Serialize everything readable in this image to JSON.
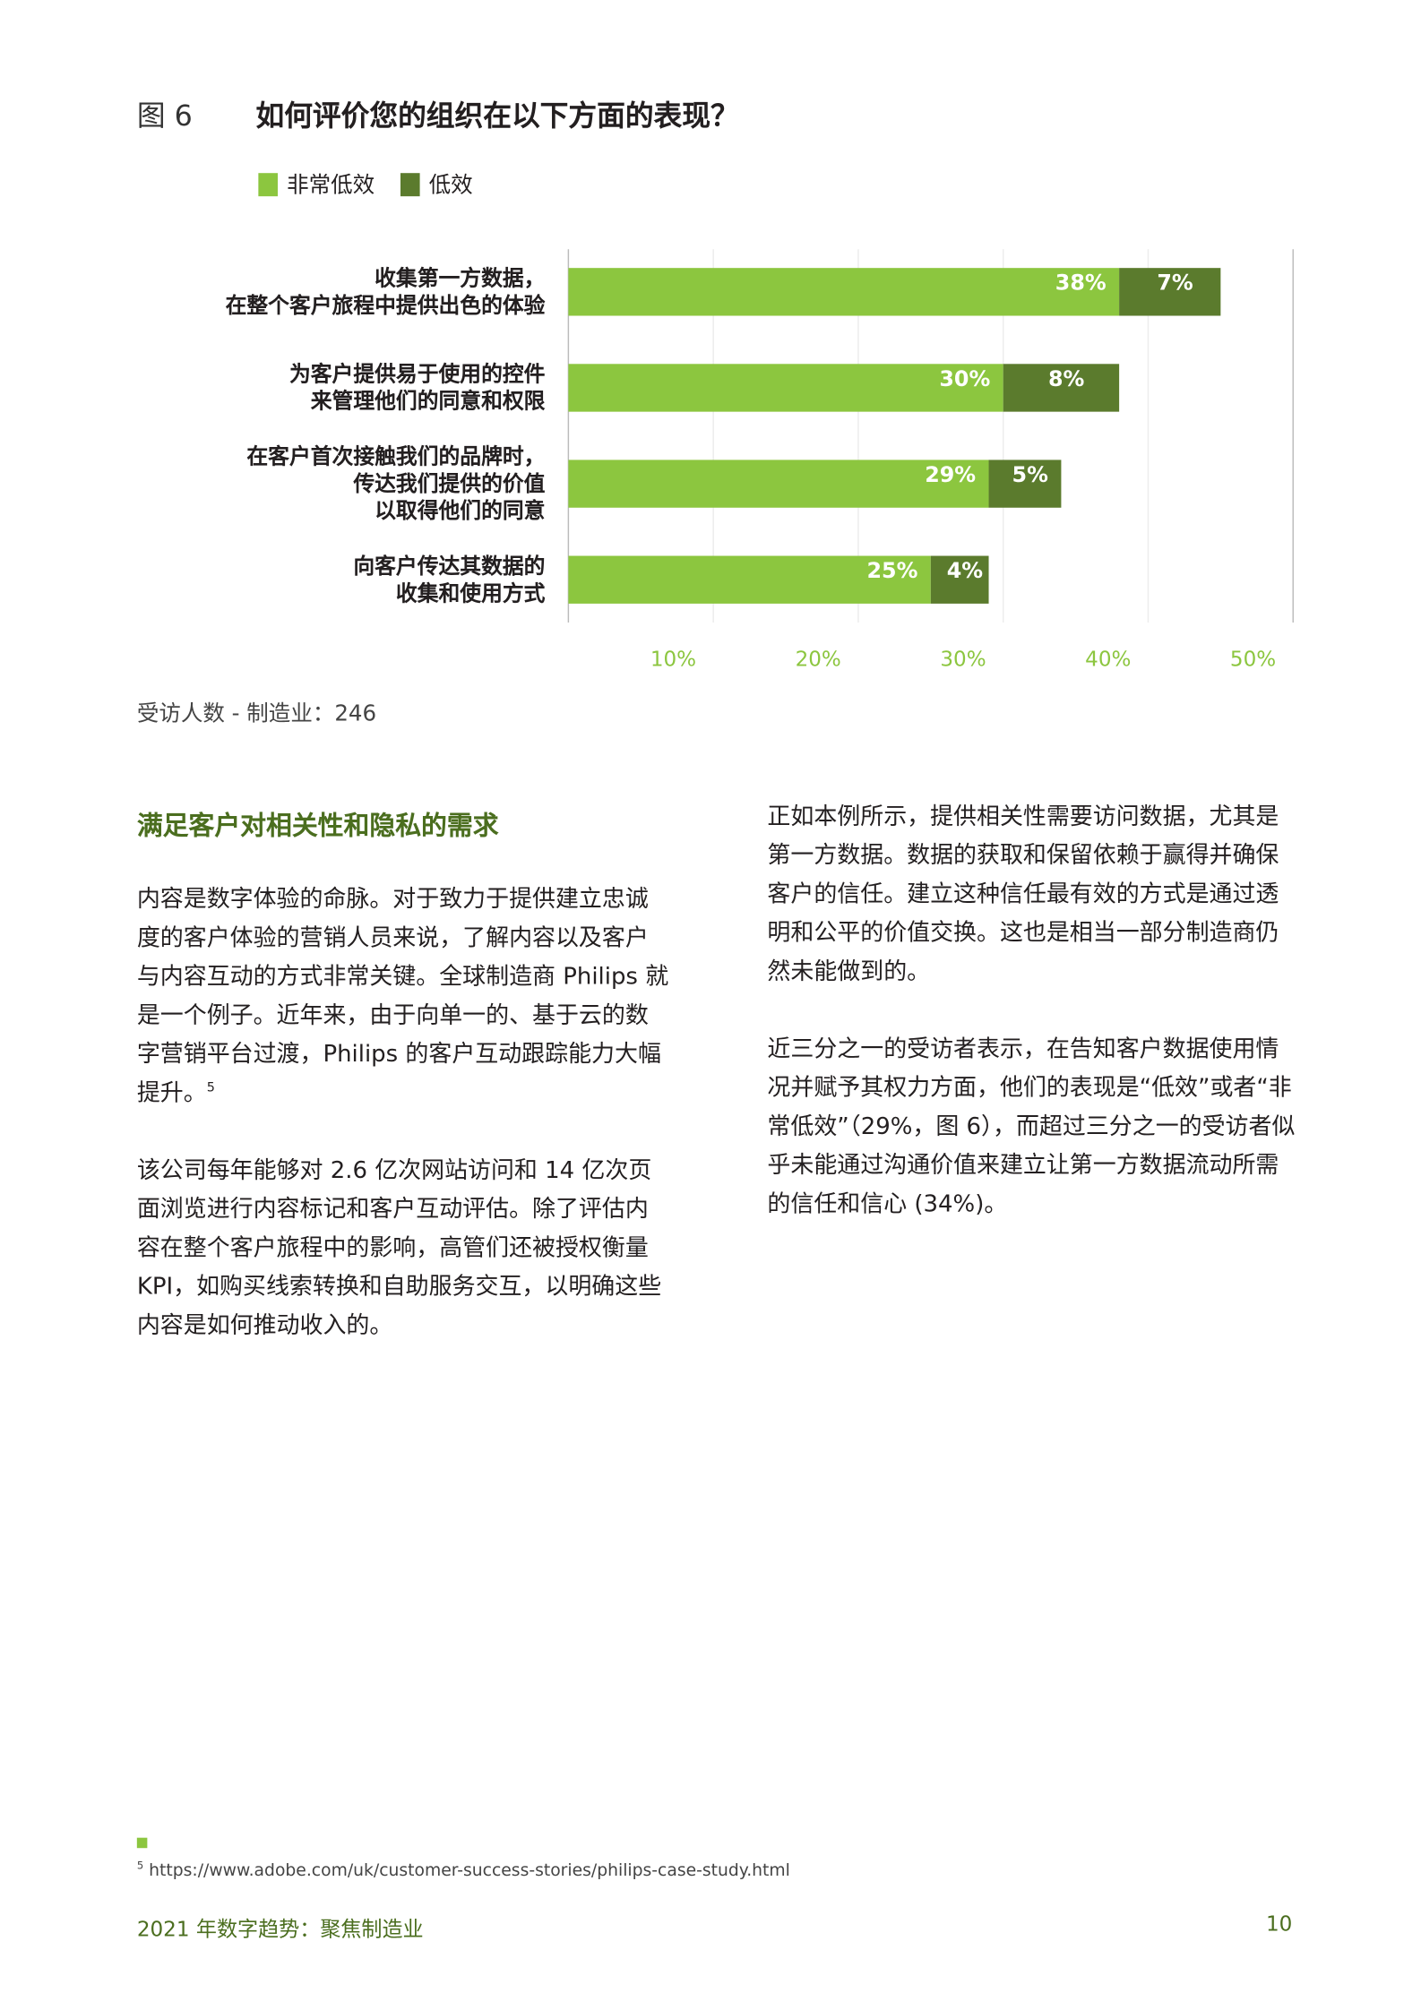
{
  "figure": {
    "label": "图 6",
    "title": "如何评价您的组织在以下方面的表现？"
  },
  "chart_data": {
    "type": "bar",
    "orientation": "horizontal",
    "stacked": true,
    "categories": [
      "收集第一方数据，\n在整个客户旅程中提供出色的体验",
      "为客户提供易于使用的控件\n来管理他们的同意和权限",
      "在客户首次接触我们的品牌时，\n传达我们提供的价值\n以取得他们的同意",
      "向客户传达其数据的\n收集和使用方式"
    ],
    "series": [
      {
        "name": "非常低效",
        "color": "#8cc63f",
        "values": [
          38,
          30,
          29,
          25
        ],
        "value_labels": [
          "38%",
          "30%",
          "29%",
          "25%"
        ]
      },
      {
        "name": "低效",
        "color": "#5b7b2d",
        "values": [
          7,
          8,
          5,
          4
        ],
        "value_labels": [
          "7%",
          "8%",
          "5%",
          "4%"
        ]
      }
    ],
    "xlim": [
      0,
      50
    ],
    "xticks": [
      {
        "value": 10,
        "label": "10%"
      },
      {
        "value": 20,
        "label": "20%"
      },
      {
        "value": 30,
        "label": "30%"
      },
      {
        "value": 40,
        "label": "40%"
      },
      {
        "value": 50,
        "label": "50%"
      }
    ],
    "grid": true,
    "note": "受访人数 - 制造业：246"
  },
  "section": {
    "heading": "满足客户对相关性和隐私的需求",
    "left_paragraphs": [
      {
        "text": "内容是数字体验的命脉。对于致力于提供建立忠诚度的客户体验的营销人员来说，了解内容以及客户与内容互动的方式非常关键。全球制造商 Philips 就是一个例子。近年来，由于向单一的、基于云的数字营销平台过渡，Philips 的客户互动跟踪能力大幅提升。",
        "sup": "5"
      },
      {
        "text": "该公司每年能够对 2.6 亿次网站访问和 14 亿次页面浏览进行内容标记和客户互动评估。除了评估内容在整个客户旅程中的影响，高管们还被授权衡量 KPI，如购买线索转换和自助服务交互，以明确这些内容是如何推动收入的。"
      }
    ],
    "right_paragraphs": [
      {
        "text": "正如本例所示，提供相关性需要访问数据，尤其是第一方数据。数据的获取和保留依赖于赢得并确保客户的信任。建立这种信任最有效的方式是通过透明和公平的价值交换。这也是相当一部分制造商仍然未能做到的。"
      },
      {
        "text": "近三分之一的受访者表示，在告知客户数据使用情况并赋予其权力方面，他们的表现是“低效”或者“非常低效”（29%，图 6），而超过三分之一的受访者似乎未能通过沟通价值来建立让第一方数据流动所需的信任和信心 (34%)。"
      }
    ]
  },
  "footnote": {
    "number": "5",
    "url": "https://www.adobe.com/uk/customer-success-stories/philips-case-study.html"
  },
  "footer": {
    "title": "2021 年数字趋势：聚焦制造业",
    "page": "10"
  }
}
